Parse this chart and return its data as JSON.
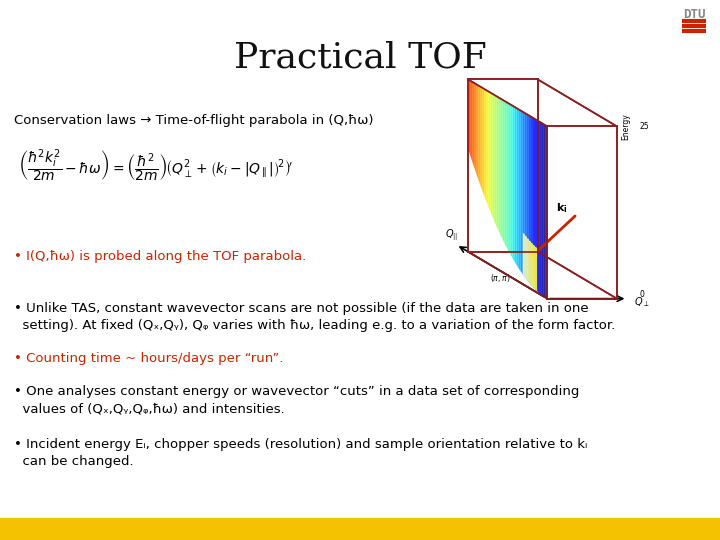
{
  "title": "Practical TOF",
  "title_fontsize": 26,
  "background_color": "#ffffff",
  "bottom_bar_color": "#f5c200",
  "conservation_line": "Conservation laws → Time-of-flight parabola in (Q,ħω)",
  "conservation_fontsize": 9.5,
  "bullet1_text": "• I(Q,ħω) is probed along the TOF parabola.",
  "bullet1_color": "#cc2200",
  "bullet1_fontsize": 9.5,
  "bullet2_text": "• Unlike TAS, constant wavevector scans are not possible (if the data are taken in one\n  setting). At fixed (Qₓ,Qᵧ), Qᵩ varies with ħω, leading e.g. to a variation of the form factor.",
  "bullet2_color": "#000000",
  "bullet2_fontsize": 9.5,
  "bullet3_text": "• Counting time ~ hours/days per “run”.",
  "bullet3_color": "#cc2200",
  "bullet3_fontsize": 9.5,
  "bullet4_text": "• One analyses constant energy or wavevector “cuts” in a data set of corresponding\n  values of (Qₓ,Qᵧ,Qᵩ,ħω) and intensities.",
  "bullet4_color": "#000000",
  "bullet4_fontsize": 9.5,
  "bullet5_text": "• Incident energy Eᵢ, chopper speeds (resolution) and sample orientation relative to kᵢ\n  can be changed.",
  "bullet5_color": "#000000",
  "bullet5_fontsize": 9.5,
  "dtu_color": "#888888",
  "dtu_fontsize": 9,
  "dtu_bar_color": "#cc2200"
}
